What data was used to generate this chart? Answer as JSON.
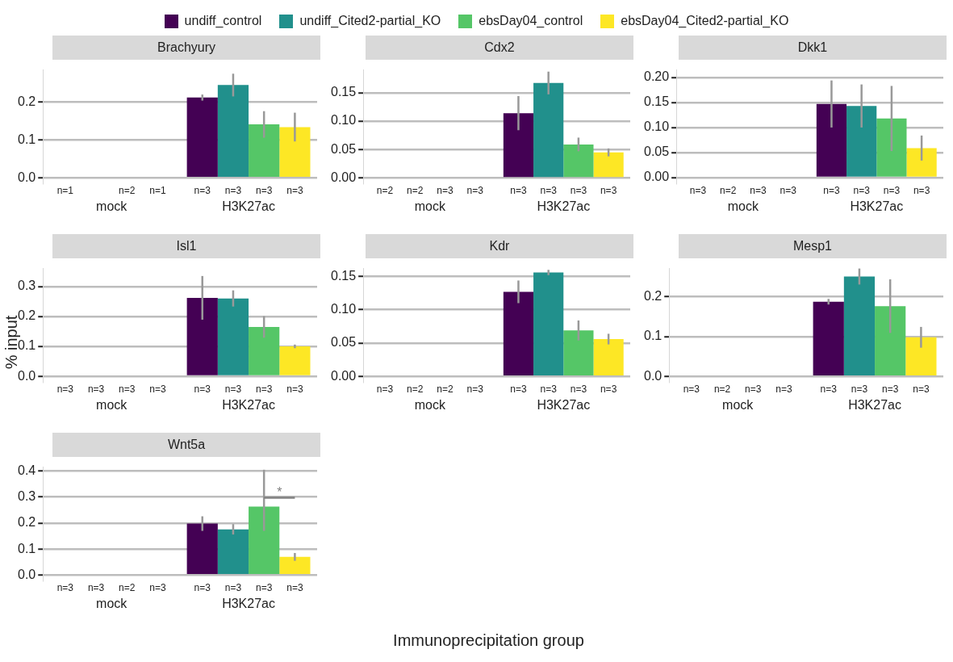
{
  "chart_data": [
    {
      "type": "bar",
      "title": "Brachyury",
      "legend": "top",
      "grid": "y",
      "categories": [
        "mock",
        "H3K27ac"
      ],
      "ylim": [
        -0.014,
        0.285
      ],
      "yticks": [
        {
          "value": 0,
          "label": "0.0"
        },
        {
          "value": 0.1,
          "label": "0.1"
        },
        {
          "value": 0.2,
          "label": "0.2"
        }
      ],
      "annotations": [
        "n=1",
        "n=2",
        "n=1",
        "n=3",
        "n=3",
        "n=3",
        "n=3"
      ],
      "series": [
        {
          "name": "undiff_control",
          "color": "#440154",
          "values": [
            0,
            0.212
          ],
          "errors": [
            null,
            0.008
          ]
        },
        {
          "name": "undiff_Cited2-partial_KO",
          "color": "#21908c",
          "values": [
            null,
            0.245
          ],
          "errors": [
            null,
            0.03
          ]
        },
        {
          "name": "ebsDay04_control",
          "color": "#55c667",
          "values": [
            0,
            0.141
          ],
          "errors": [
            null,
            0.035
          ]
        },
        {
          "name": "ebsDay04_Cited2-partial_KO",
          "color": "#fde725",
          "values": [
            0,
            0.134
          ],
          "errors": [
            null,
            0.038
          ]
        }
      ]
    },
    {
      "type": "bar",
      "title": "Cdx2",
      "grid": "y",
      "categories": [
        "mock",
        "H3K27ac"
      ],
      "ylim": [
        -0.009,
        0.19
      ],
      "yticks": [
        {
          "value": 0,
          "label": "0.00"
        },
        {
          "value": 0.05,
          "label": "0.05"
        },
        {
          "value": 0.1,
          "label": "0.10"
        },
        {
          "value": 0.15,
          "label": "0.15"
        }
      ],
      "annotations": [
        "n=2",
        "n=2",
        "n=3",
        "n=3",
        "n=3",
        "n=3",
        "n=3",
        "n=3"
      ],
      "series": [
        {
          "color": "#440154",
          "values": [
            0,
            0.114
          ],
          "errors": [
            null,
            0.03
          ]
        },
        {
          "color": "#21908c",
          "values": [
            0,
            0.167
          ],
          "errors": [
            null,
            0.02
          ]
        },
        {
          "color": "#55c667",
          "values": [
            0,
            0.059
          ],
          "errors": [
            null,
            0.012
          ]
        },
        {
          "color": "#fde725",
          "values": [
            0,
            0.045
          ],
          "errors": [
            null,
            0.007
          ]
        }
      ]
    },
    {
      "type": "bar",
      "title": "Dkk1",
      "grid": "y",
      "categories": [
        "mock",
        "H3K27ac"
      ],
      "ylim": [
        -0.011,
        0.215
      ],
      "yticks": [
        {
          "value": 0,
          "label": "0.00"
        },
        {
          "value": 0.05,
          "label": "0.05"
        },
        {
          "value": 0.1,
          "label": "0.10"
        },
        {
          "value": 0.15,
          "label": "0.15"
        },
        {
          "value": 0.2,
          "label": "0.20"
        }
      ],
      "annotations": [
        "n=3",
        "n=2",
        "n=3",
        "n=3",
        "n=3",
        "n=3",
        "n=3",
        "n=3"
      ],
      "series": [
        {
          "color": "#440154",
          "values": [
            0,
            0.147
          ],
          "errors": [
            null,
            0.047
          ]
        },
        {
          "color": "#21908c",
          "values": [
            0,
            0.143
          ],
          "errors": [
            null,
            0.043
          ]
        },
        {
          "color": "#55c667",
          "values": [
            0,
            0.118
          ],
          "errors": [
            null,
            0.065
          ]
        },
        {
          "color": "#fde725",
          "values": [
            0,
            0.059
          ],
          "errors": [
            null,
            0.025
          ]
        }
      ]
    },
    {
      "type": "bar",
      "title": "Isl1",
      "ylabel": "% input",
      "grid": "y",
      "categories": [
        "mock",
        "H3K27ac"
      ],
      "ylim": [
        -0.018,
        0.36
      ],
      "yticks": [
        {
          "value": 0,
          "label": "0.0"
        },
        {
          "value": 0.1,
          "label": "0.1"
        },
        {
          "value": 0.2,
          "label": "0.2"
        },
        {
          "value": 0.3,
          "label": "0.3"
        }
      ],
      "annotations": [
        "n=3",
        "n=3",
        "n=3",
        "n=3",
        "n=3",
        "n=3",
        "n=3",
        "n=3"
      ],
      "series": [
        {
          "color": "#440154",
          "values": [
            0,
            0.262
          ],
          "errors": [
            null,
            0.073
          ]
        },
        {
          "color": "#21908c",
          "values": [
            0,
            0.26
          ],
          "errors": [
            null,
            0.027
          ]
        },
        {
          "color": "#55c667",
          "values": [
            0,
            0.165
          ],
          "errors": [
            null,
            0.036
          ]
        },
        {
          "color": "#fde725",
          "values": [
            0,
            0.1
          ],
          "errors": [
            null,
            0.006
          ]
        }
      ]
    },
    {
      "type": "bar",
      "title": "Kdr",
      "grid": "y",
      "categories": [
        "mock",
        "H3K27ac"
      ],
      "ylim": [
        -0.008,
        0.162
      ],
      "yticks": [
        {
          "value": 0,
          "label": "0.00"
        },
        {
          "value": 0.05,
          "label": "0.05"
        },
        {
          "value": 0.1,
          "label": "0.10"
        },
        {
          "value": 0.15,
          "label": "0.15"
        }
      ],
      "annotations": [
        "n=3",
        "n=2",
        "n=2",
        "n=3",
        "n=3",
        "n=3",
        "n=3",
        "n=3"
      ],
      "series": [
        {
          "color": "#440154",
          "values": [
            0,
            0.127
          ],
          "errors": [
            null,
            0.017
          ]
        },
        {
          "color": "#21908c",
          "values": [
            0,
            0.156
          ],
          "errors": [
            null,
            0.004
          ]
        },
        {
          "color": "#55c667",
          "values": [
            0,
            0.069
          ],
          "errors": [
            null,
            0.015
          ]
        },
        {
          "color": "#fde725",
          "values": [
            0,
            0.056
          ],
          "errors": [
            null,
            0.008
          ]
        }
      ]
    },
    {
      "type": "bar",
      "title": "Mesp1",
      "grid": "y",
      "categories": [
        "mock",
        "H3K27ac"
      ],
      "ylim": [
        -0.013,
        0.27
      ],
      "yticks": [
        {
          "value": 0,
          "label": "0.0"
        },
        {
          "value": 0.1,
          "label": "0.1"
        },
        {
          "value": 0.2,
          "label": "0.2"
        }
      ],
      "annotations": [
        "n=3",
        "n=2",
        "n=3",
        "n=3",
        "n=3",
        "n=3",
        "n=3",
        "n=3"
      ],
      "series": [
        {
          "color": "#440154",
          "values": [
            0,
            0.187
          ],
          "errors": [
            null,
            0.007
          ]
        },
        {
          "color": "#21908c",
          "values": [
            0,
            0.25
          ],
          "errors": [
            null,
            0.02
          ]
        },
        {
          "color": "#55c667",
          "values": [
            0,
            0.176
          ],
          "errors": [
            null,
            0.067
          ]
        },
        {
          "color": "#fde725",
          "values": [
            0,
            0.098
          ],
          "errors": [
            null,
            0.026
          ]
        }
      ]
    },
    {
      "type": "bar",
      "title": "Wnt5a",
      "xlabel": "Immunoprecipitation group",
      "grid": "y",
      "categories": [
        "mock",
        "H3K27ac"
      ],
      "ylim": [
        -0.02,
        0.415
      ],
      "yticks": [
        {
          "value": 0,
          "label": "0.0"
        },
        {
          "value": 0.1,
          "label": "0.1"
        },
        {
          "value": 0.2,
          "label": "0.2"
        },
        {
          "value": 0.3,
          "label": "0.3"
        },
        {
          "value": 0.4,
          "label": "0.4"
        }
      ],
      "annotations": [
        "n=3",
        "n=3",
        "n=2",
        "n=3",
        "n=3",
        "n=3",
        "n=3",
        "n=3",
        "*"
      ],
      "series": [
        {
          "color": "#440154",
          "values": [
            0,
            0.198
          ],
          "errors": [
            null,
            0.028
          ]
        },
        {
          "color": "#21908c",
          "values": [
            0,
            0.176
          ],
          "errors": [
            null,
            0.02
          ]
        },
        {
          "color": "#55c667",
          "values": [
            0,
            0.263
          ],
          "errors": [
            null,
            [
              0.17,
              0.405
            ]
          ]
        },
        {
          "color": "#fde725",
          "values": [
            0,
            0.07
          ],
          "errors": [
            null,
            0.015
          ]
        }
      ]
    }
  ]
}
